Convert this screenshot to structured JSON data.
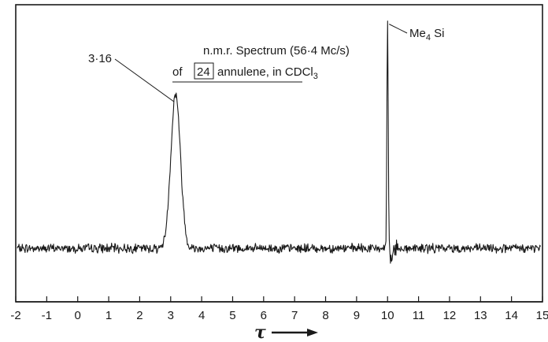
{
  "chart_data": {
    "type": "line",
    "title": "n.m.r. Spectrum (56·4 Mc/s)",
    "subtitle": "of [24] annulene, in CDCl3",
    "title_parts": {
      "line1": "n.m.r. Spectrum (56·4 Mc/s)",
      "line2_prefix": "of ",
      "boxed_number": "24",
      "line2_mid": " annulene,",
      "line2_suffix": " in CDCl",
      "subscript": "3"
    },
    "xlabel": "τ",
    "ylabel": "",
    "xlim": [
      -2,
      15
    ],
    "ylim": [
      0,
      100
    ],
    "x_tick_labels": [
      "-2",
      "-1",
      "0",
      "1",
      "2",
      "3",
      "4",
      "5",
      "6",
      "7",
      "8",
      "9",
      "10",
      "11",
      "12",
      "13",
      "14",
      "15"
    ],
    "x_ticks": [
      -2,
      -1,
      0,
      1,
      2,
      3,
      4,
      5,
      6,
      7,
      8,
      9,
      10,
      11,
      12,
      13,
      14,
      15
    ],
    "baseline": 18,
    "peaks": [
      {
        "x": 3.16,
        "y": 70,
        "width": 0.22,
        "label": "3·16"
      },
      {
        "x": 10.0,
        "y": 94,
        "width": 0.03,
        "label_main": "Me",
        "label_sub": "4",
        "label_tail": " Si"
      }
    ],
    "grid": false,
    "legend": "none",
    "colors": {
      "trace": "#1a1a1a",
      "axis": "#1a1a1a"
    }
  }
}
